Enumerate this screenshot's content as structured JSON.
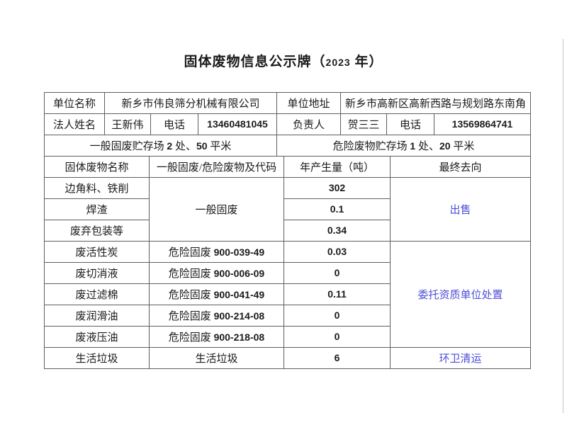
{
  "page": {
    "title": "固体废物信息公示牌（2023 年）"
  },
  "info": {
    "unit_name_label": "单位名称",
    "unit_name": "新乡市伟良筛分机械有限公司",
    "unit_addr_label": "单位地址",
    "unit_addr": "新乡市高新区高新西路与规划路东南角",
    "legal_label": "法人姓名",
    "legal_name": "王新伟",
    "phone_label_1": "电话",
    "phone_1": "13460481045",
    "manager_label": "负责人",
    "manager_name": "贺三三",
    "phone_label_2": "电话",
    "phone_2": "13569864741",
    "general_storage": "一般固废贮存场 2 处、50 平米",
    "hazard_storage": "危险废物贮存场 1 处、20 平米"
  },
  "waste_table": {
    "headers": {
      "name": "固体废物名称",
      "type_code": "一般固废/危险废物及代码",
      "amount": "年产生量（吨）",
      "destination": "最终去向"
    },
    "rows": [
      {
        "name": "边角料、铁削",
        "type": "一般固废",
        "amount": "302",
        "dest": "出售"
      },
      {
        "name": "焊渣",
        "amount": "0.1"
      },
      {
        "name": "废弃包装等",
        "amount": "0.34"
      },
      {
        "name": "废活性炭",
        "type": "危险固废 900-039-49",
        "amount": "0.03",
        "dest": "委托资质单位处置"
      },
      {
        "name": "废切消液",
        "type": "危险固废 900-006-09",
        "amount": "0"
      },
      {
        "name": "废过滤棉",
        "type": "危险固废 900-041-49",
        "amount": "0.11"
      },
      {
        "name": "废润滑油",
        "type": "危险固废 900-214-08",
        "amount": "0"
      },
      {
        "name": "废液压油",
        "type": "危险固废 900-218-08",
        "amount": "0"
      },
      {
        "name": "生活垃圾",
        "type": "生活垃圾",
        "amount": "6",
        "dest": "环卫清运"
      }
    ]
  },
  "colors": {
    "destination_blue": "#4d4dd8",
    "border_gray": "#5f5f5f",
    "text_black": "#1b1b1b"
  }
}
